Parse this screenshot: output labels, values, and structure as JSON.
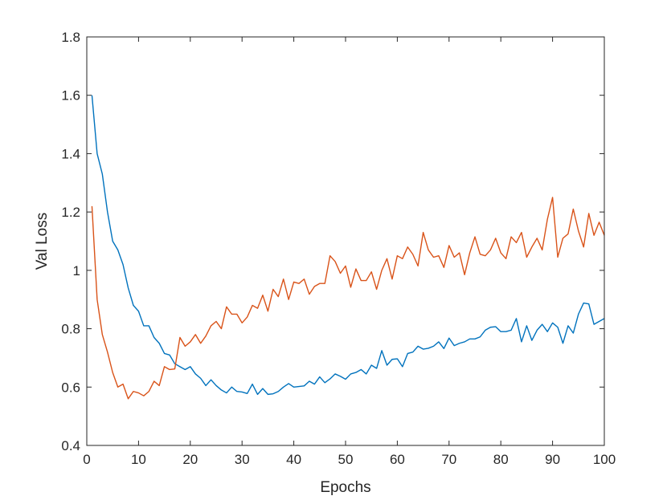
{
  "chart_data": {
    "type": "line",
    "xlabel": "Epochs",
    "ylabel": "Val Loss",
    "xlim": [
      0,
      100
    ],
    "ylim": [
      0.4,
      1.8
    ],
    "xticks": [
      "0",
      "10",
      "20",
      "30",
      "40",
      "50",
      "60",
      "70",
      "80",
      "90",
      "100"
    ],
    "yticks": [
      "0.4",
      "0.6",
      "0.8",
      "1",
      "1.2",
      "1.4",
      "1.6",
      "1.8"
    ],
    "grid": false,
    "x": [
      1,
      2,
      3,
      4,
      5,
      6,
      7,
      8,
      9,
      10,
      11,
      12,
      13,
      14,
      15,
      16,
      17,
      18,
      19,
      20,
      21,
      22,
      23,
      24,
      25,
      26,
      27,
      28,
      29,
      30,
      31,
      32,
      33,
      34,
      35,
      36,
      37,
      38,
      39,
      40,
      41,
      42,
      43,
      44,
      45,
      46,
      47,
      48,
      49,
      50,
      51,
      52,
      53,
      54,
      55,
      56,
      57,
      58,
      59,
      60,
      61,
      62,
      63,
      64,
      65,
      66,
      67,
      68,
      69,
      70,
      71,
      72,
      73,
      74,
      75,
      76,
      77,
      78,
      79,
      80,
      81,
      82,
      83,
      84,
      85,
      86,
      87,
      88,
      89,
      90,
      91,
      92,
      93,
      94,
      95,
      96,
      97,
      98,
      99,
      100
    ],
    "series": [
      {
        "color": "#0072BD",
        "values": [
          1.6,
          1.4,
          1.33,
          1.2,
          1.1,
          1.07,
          1.02,
          0.94,
          0.88,
          0.86,
          0.81,
          0.81,
          0.77,
          0.75,
          0.715,
          0.71,
          0.68,
          0.67,
          0.66,
          0.67,
          0.645,
          0.63,
          0.605,
          0.625,
          0.605,
          0.59,
          0.58,
          0.6,
          0.585,
          0.583,
          0.578,
          0.61,
          0.575,
          0.595,
          0.575,
          0.577,
          0.585,
          0.6,
          0.612,
          0.6,
          0.602,
          0.604,
          0.62,
          0.61,
          0.635,
          0.615,
          0.628,
          0.645,
          0.637,
          0.627,
          0.645,
          0.65,
          0.66,
          0.645,
          0.675,
          0.664,
          0.725,
          0.675,
          0.695,
          0.697,
          0.67,
          0.715,
          0.72,
          0.74,
          0.73,
          0.733,
          0.74,
          0.755,
          0.732,
          0.768,
          0.742,
          0.75,
          0.755,
          0.765,
          0.765,
          0.772,
          0.795,
          0.805,
          0.807,
          0.79,
          0.79,
          0.795,
          0.835,
          0.755,
          0.81,
          0.76,
          0.795,
          0.815,
          0.79,
          0.82,
          0.805,
          0.75,
          0.81,
          0.785,
          0.85,
          0.888,
          0.885,
          0.815,
          0.825,
          0.835
        ]
      },
      {
        "color": "#D95319",
        "values": [
          1.22,
          0.9,
          0.78,
          0.72,
          0.65,
          0.6,
          0.61,
          0.56,
          0.585,
          0.58,
          0.57,
          0.585,
          0.62,
          0.605,
          0.67,
          0.66,
          0.662,
          0.77,
          0.74,
          0.755,
          0.78,
          0.75,
          0.775,
          0.81,
          0.825,
          0.8,
          0.875,
          0.85,
          0.85,
          0.82,
          0.84,
          0.88,
          0.87,
          0.915,
          0.86,
          0.935,
          0.91,
          0.97,
          0.9,
          0.96,
          0.955,
          0.97,
          0.918,
          0.945,
          0.955,
          0.955,
          1.05,
          1.03,
          0.99,
          1.015,
          0.942,
          1.005,
          0.965,
          0.965,
          0.995,
          0.935,
          1.0,
          1.04,
          0.97,
          1.05,
          1.04,
          1.08,
          1.055,
          1.015,
          1.13,
          1.07,
          1.045,
          1.05,
          1.01,
          1.085,
          1.045,
          1.06,
          0.985,
          1.06,
          1.115,
          1.055,
          1.05,
          1.07,
          1.11,
          1.06,
          1.04,
          1.115,
          1.095,
          1.13,
          1.045,
          1.08,
          1.11,
          1.07,
          1.175,
          1.25,
          1.045,
          1.11,
          1.125,
          1.21,
          1.135,
          1.08,
          1.195,
          1.12,
          1.165,
          1.12
        ]
      }
    ]
  }
}
